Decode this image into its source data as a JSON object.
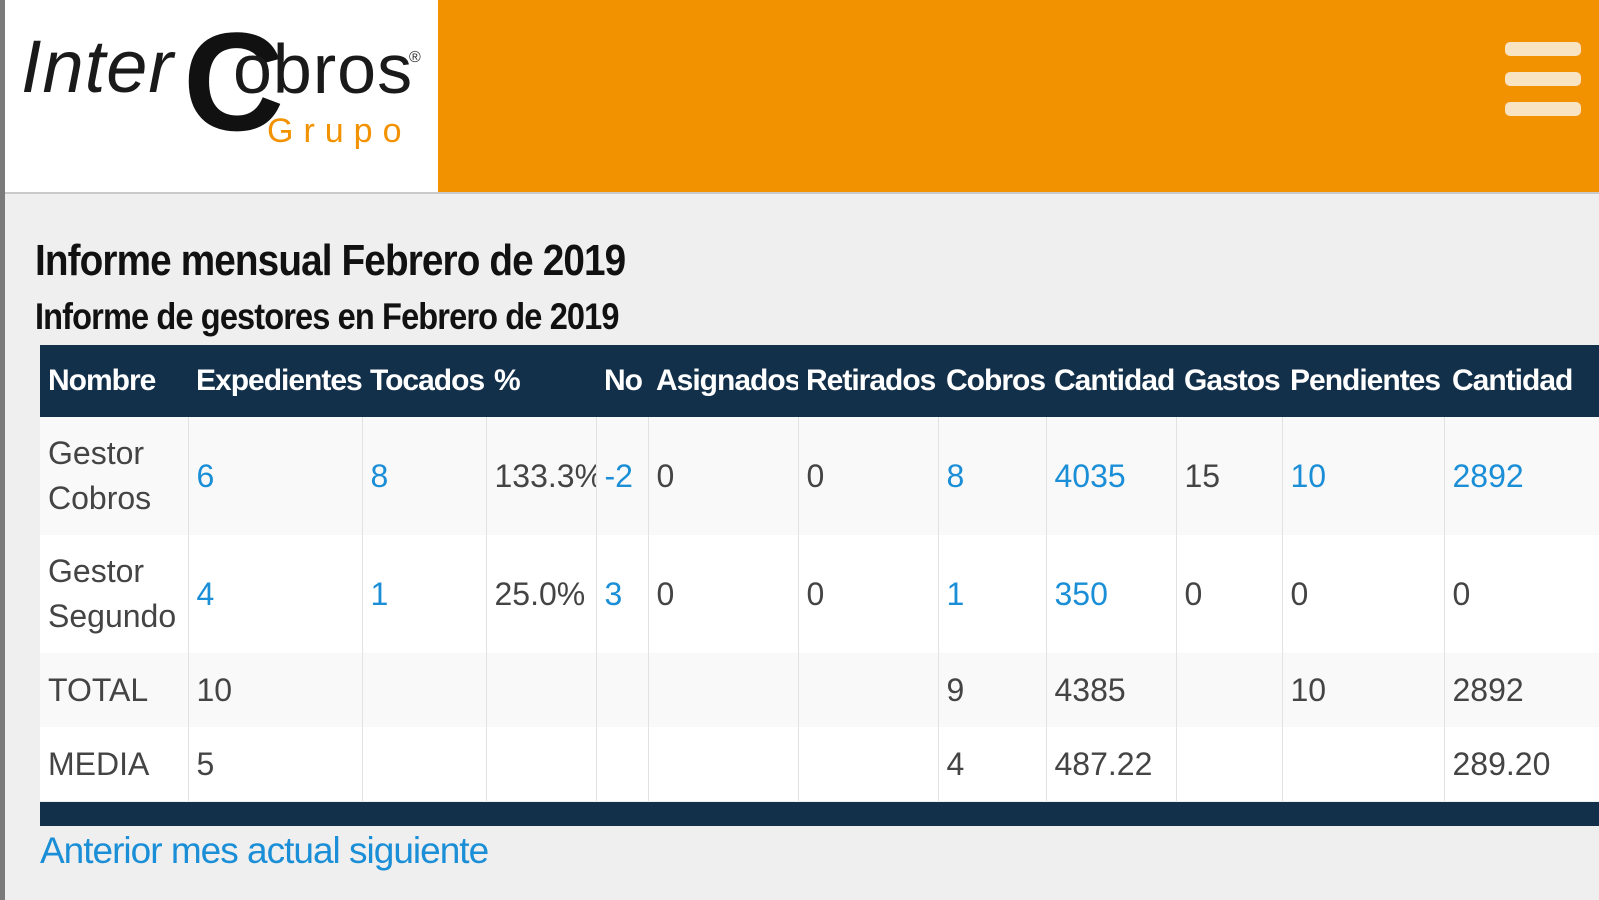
{
  "brand": {
    "logo_inter": "Inter",
    "logo_c": "C",
    "logo_obros": "obros",
    "logo_reg": "®",
    "logo_grupo": "Grupo",
    "header_color": "#f39200",
    "menu_icon": "hamburger-menu-icon"
  },
  "page": {
    "title": "Informe mensual Febrero de 2019",
    "subtitle": "Informe de gestores en Febrero de 2019"
  },
  "table": {
    "headers": [
      "Nombre",
      "Expedientes",
      "Tocados",
      "%",
      "No",
      "Asignados",
      "Retirados",
      "Cobros",
      "Cantidad",
      "Gastos",
      "Pendientes",
      "Cantidad"
    ],
    "rows": [
      {
        "nombre": "Gestor Cobros",
        "expedientes": "6",
        "tocados": "8",
        "pct": "133.3%",
        "no": "-2",
        "asignados": "0",
        "retirados": "0",
        "cobros": "8",
        "cantidad": "4035",
        "gastos": "15",
        "pendientes": "10",
        "cantidad2": "2892"
      },
      {
        "nombre": "Gestor Segundo",
        "expedientes": "4",
        "tocados": "1",
        "pct": "25.0%",
        "no": "3",
        "asignados": "0",
        "retirados": "0",
        "cobros": "1",
        "cantidad": "350",
        "gastos": "0",
        "pendientes": "0",
        "cantidad2": "0"
      },
      {
        "nombre": "TOTAL",
        "expedientes": "10",
        "tocados": "",
        "pct": "",
        "no": "",
        "asignados": "",
        "retirados": "",
        "cobros": "9",
        "cantidad": "4385",
        "gastos": "",
        "pendientes": "10",
        "cantidad2": "2892"
      },
      {
        "nombre": "MEDIA",
        "expedientes": "5",
        "tocados": "",
        "pct": "",
        "no": "",
        "asignados": "",
        "retirados": "",
        "cobros": "4",
        "cantidad": "487.22",
        "gastos": "",
        "pendientes": "",
        "cantidad2": "289.20"
      }
    ]
  },
  "nav": {
    "prev": "Anterior",
    "current": "mes actual",
    "next": "siguiente"
  }
}
